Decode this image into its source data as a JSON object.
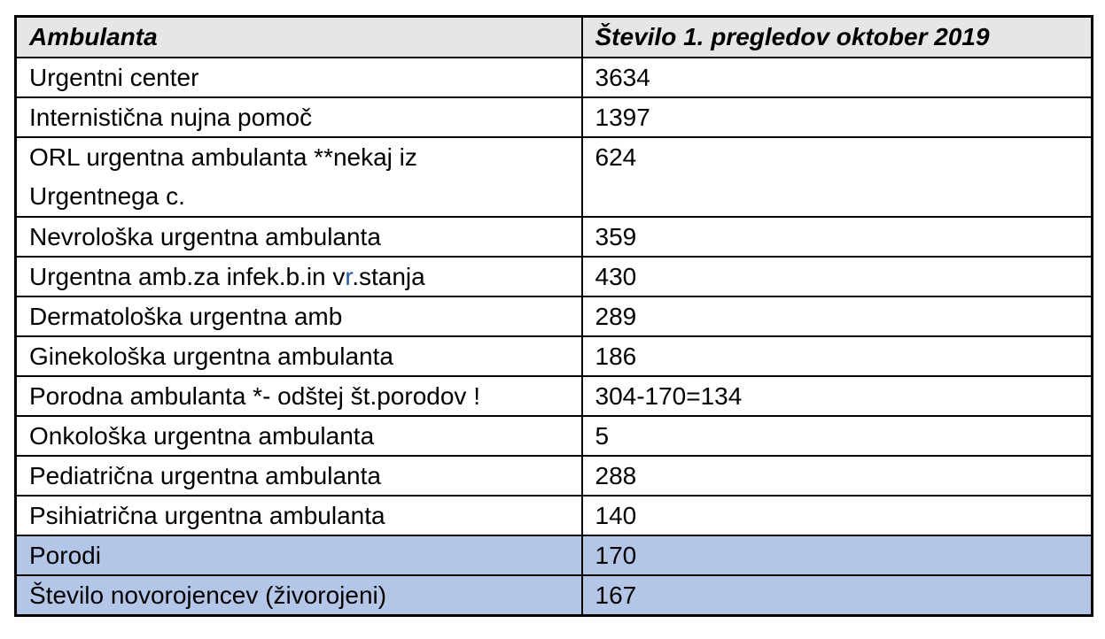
{
  "table": {
    "columns": [
      "Ambulanta",
      "Število 1. pregledov oktober 2019"
    ],
    "rows": [
      {
        "label": "Urgentni center",
        "value": "3634",
        "highlight": false
      },
      {
        "label": "Internistična nujna pomoč",
        "value": "1397",
        "highlight": false
      },
      {
        "label": "ORL urgentna ambulanta **nekaj iz Urgentnega c.",
        "label_line1": "ORL urgentna ambulanta **nekaj iz",
        "label_line2": "Urgentnega c.",
        "value": "624",
        "highlight": false
      },
      {
        "label": "Nevrološka urgentna ambulanta",
        "value": "359",
        "highlight": false
      },
      {
        "label": "Urgentna amb.za infek.b.in vr.stanja",
        "label_pre": "Urgentna amb.za infek.b.in v",
        "label_accent": "r",
        "label_post": ".stanja",
        "value": "430",
        "highlight": false
      },
      {
        "label": "Dermatološka urgentna amb",
        "value": "289",
        "highlight": false
      },
      {
        "label": "Ginekološka urgentna ambulanta",
        "value": "186",
        "highlight": false
      },
      {
        "label": "Porodna ambulanta *- odštej št.porodov !",
        "value": "304-170=134",
        "highlight": false
      },
      {
        "label": "Onkološka urgentna ambulanta",
        "value": "5",
        "highlight": false
      },
      {
        "label": "Pediatrična urgentna ambulanta",
        "value": "288",
        "highlight": false
      },
      {
        "label": "Psihiatrična urgentna ambulanta",
        "value": "140",
        "highlight": false
      },
      {
        "label": "Porodi",
        "value": "170",
        "highlight": true
      },
      {
        "label": "Število novorojencev (živorojeni)",
        "value": "167",
        "highlight": true
      }
    ]
  },
  "colors": {
    "page_bg": "#ffffff",
    "header_bg": "#e7e6e6",
    "highlight_bg": "#b4c6e7",
    "border": "#000000",
    "accent_blue": "#1f5c99"
  }
}
